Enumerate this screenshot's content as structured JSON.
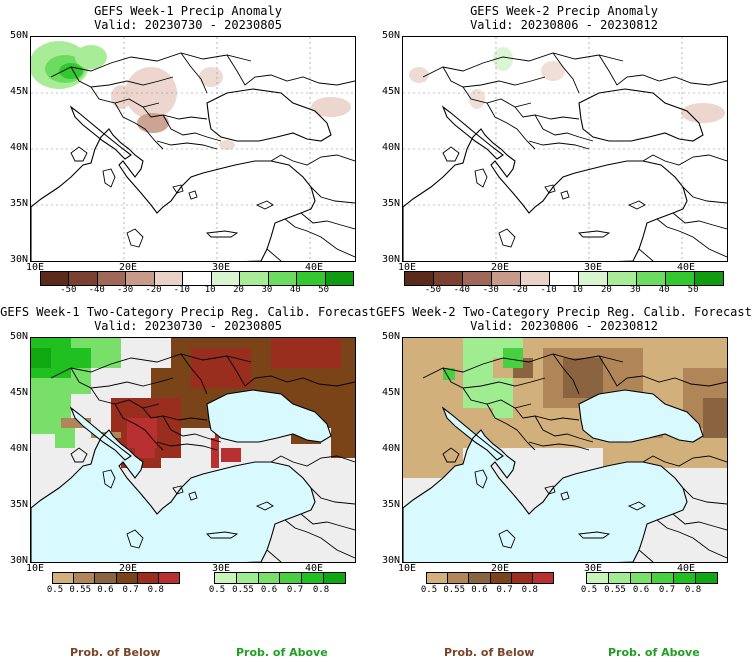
{
  "panels": [
    {
      "id": "p1",
      "title": "GEFS Week-1 Precip Anomaly",
      "valid": "Valid: 20230730 - 20230805",
      "type": "anomaly"
    },
    {
      "id": "p2",
      "title": "GEFS Week-2 Precip Anomaly",
      "valid": "Valid: 20230806 - 20230812",
      "type": "anomaly"
    },
    {
      "id": "p3",
      "title": "GEFS Week-1 Two-Category Precip Reg. Calib. Forecast",
      "valid": "Valid: 20230730 - 20230805",
      "type": "probability"
    },
    {
      "id": "p4",
      "title": "GEFS Week-2 Two-Category Precip Reg. Calib. Forecast",
      "valid": "Valid: 20230806 - 20230812",
      "type": "probability"
    }
  ],
  "lat_labels": [
    "50N",
    "45N",
    "40N",
    "35N",
    "30N"
  ],
  "lon_labels": [
    "10E",
    "20E",
    "30E",
    "40E"
  ],
  "anomaly_ticks": [
    "-50",
    "-40",
    "-30",
    "-20",
    "-10",
    "10",
    "20",
    "30",
    "40",
    "50"
  ],
  "anomaly_colors": [
    "#5a2a1a",
    "#7a4030",
    "#a06858",
    "#c89a88",
    "#ead2c8",
    "#ffffff",
    "#d8f5d0",
    "#a8ec98",
    "#6cdc60",
    "#34c830",
    "#109c10"
  ],
  "prob_below_ticks": [
    "0.5",
    "0.55",
    "0.6",
    "0.7",
    "0.8"
  ],
  "prob_above_ticks": [
    "0.5",
    "0.55",
    "0.6",
    "0.7",
    "0.8"
  ],
  "prob_below_colors": [
    "#d2b07c",
    "#b08658",
    "#8a6440",
    "#7a4418",
    "#9a2e1e",
    "#b83030"
  ],
  "prob_above_colors": [
    "#c8f5b8",
    "#a0ec90",
    "#78e068",
    "#48d040",
    "#20c020",
    "#10a810"
  ],
  "footer": {
    "below_label": "Prob. of Below",
    "above_label": "Prob. of Above"
  },
  "colors": {
    "sea": "#d8fafe",
    "no_skill_land": "#eeeeee",
    "below": "#8a5a2c",
    "above": "#48d040"
  }
}
